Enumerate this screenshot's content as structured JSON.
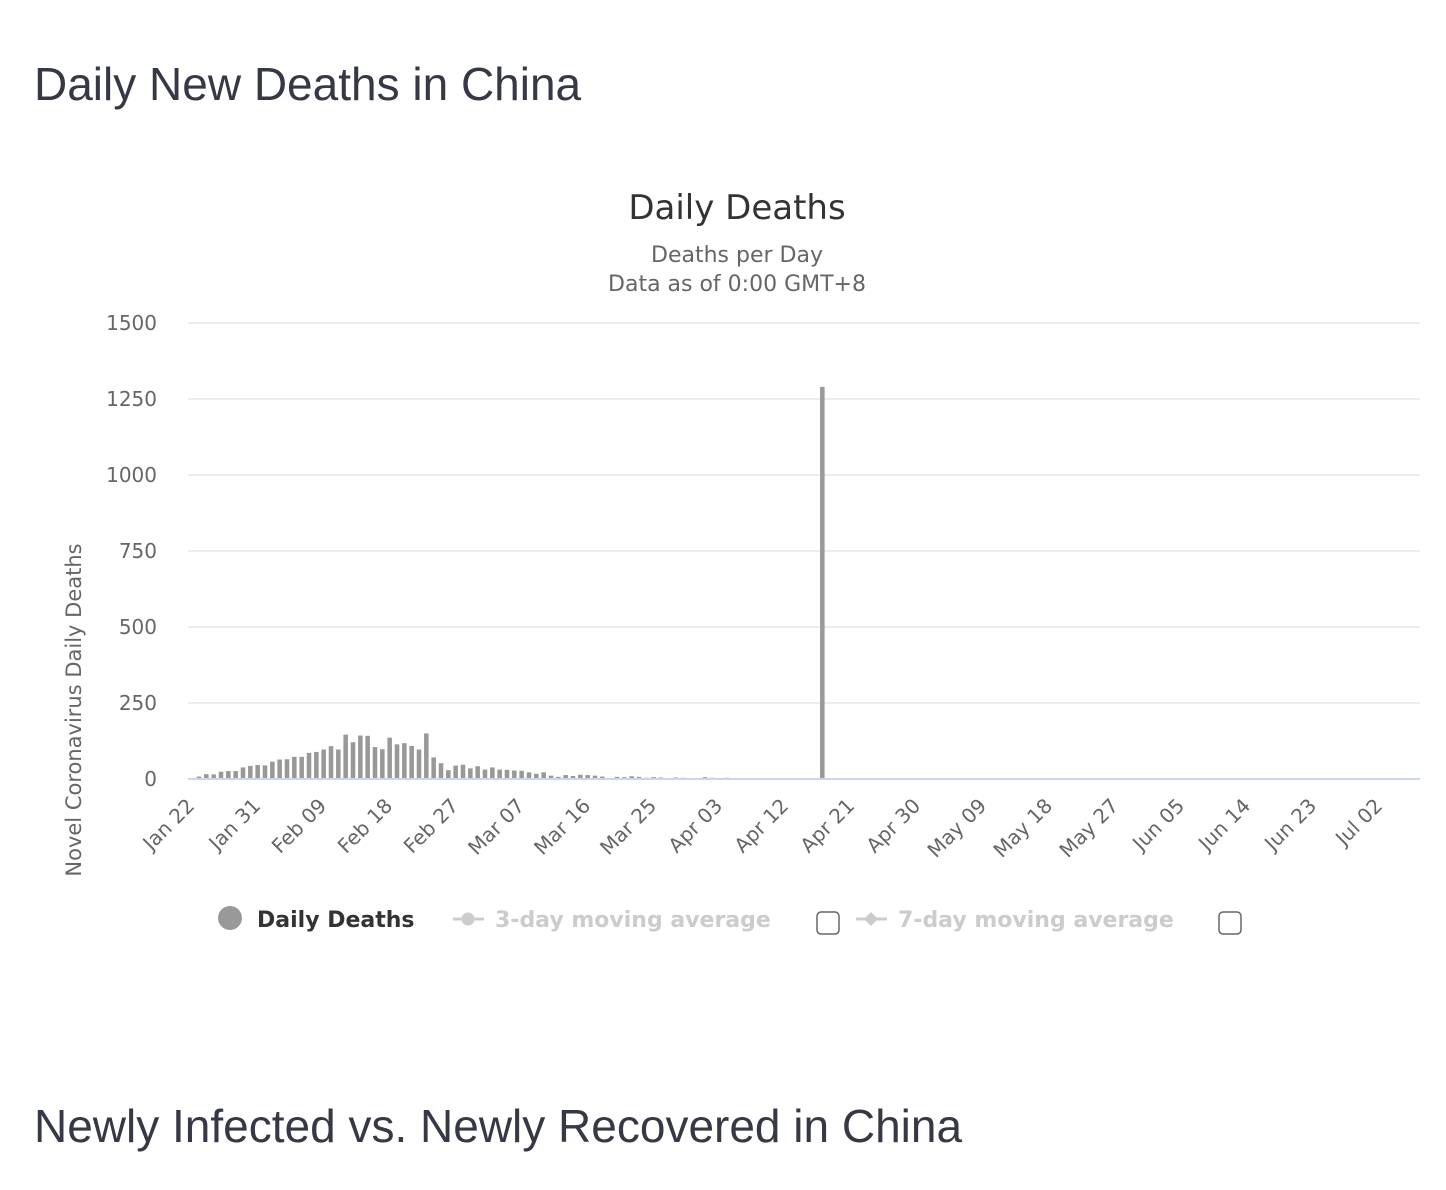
{
  "page": {
    "heading_deaths": "Daily New Deaths in China",
    "heading_infected": "Newly Infected vs. Newly Recovered in China"
  },
  "colors": {
    "bar": "#999999",
    "grid": "#e6e6e6",
    "axis_line": "#ccd6eb",
    "legend_active": "#333333",
    "legend_inactive": "#cccccc",
    "heading": "#363945"
  },
  "chart_data": {
    "type": "bar",
    "title": "Daily Deaths",
    "subtitle_lines": [
      "Deaths per Day",
      "Data as of 0:00 GMT+8"
    ],
    "ylabel": "Novel Coronavirus Daily Deaths",
    "xlabel": "",
    "ylim": [
      0,
      1500
    ],
    "yticks": [
      0,
      250,
      500,
      750,
      1000,
      1250,
      1500
    ],
    "x_start": "Jan 22",
    "x_end": "Jul 07",
    "xticks": [
      "Jan 22",
      "Jan 31",
      "Feb 09",
      "Feb 18",
      "Feb 27",
      "Mar 07",
      "Mar 16",
      "Mar 25",
      "Apr 03",
      "Apr 12",
      "Apr 21",
      "Apr 30",
      "May 09",
      "May 18",
      "May 27",
      "Jun 05",
      "Jun 14",
      "Jun 23",
      "Jul 02"
    ],
    "grid": true,
    "legend_position": "bottom",
    "legend": [
      {
        "name": "Daily Deaths",
        "active": true,
        "marker": "circle"
      },
      {
        "name": "3-day moving average",
        "active": false,
        "marker": "line-circle",
        "checkbox": true
      },
      {
        "name": "7-day moving average",
        "active": false,
        "marker": "line-diamond",
        "checkbox": true
      }
    ],
    "series": [
      {
        "name": "Daily Deaths",
        "points": [
          [
            "Jan 23",
            8
          ],
          [
            "Jan 24",
            16
          ],
          [
            "Jan 25",
            15
          ],
          [
            "Jan 26",
            24
          ],
          [
            "Jan 27",
            26
          ],
          [
            "Jan 28",
            26
          ],
          [
            "Jan 29",
            38
          ],
          [
            "Jan 30",
            43
          ],
          [
            "Jan 31",
            46
          ],
          [
            "Feb 01",
            45
          ],
          [
            "Feb 02",
            57
          ],
          [
            "Feb 03",
            64
          ],
          [
            "Feb 04",
            65
          ],
          [
            "Feb 05",
            73
          ],
          [
            "Feb 06",
            73
          ],
          [
            "Feb 07",
            86
          ],
          [
            "Feb 08",
            89
          ],
          [
            "Feb 09",
            97
          ],
          [
            "Feb 10",
            108
          ],
          [
            "Feb 11",
            97
          ],
          [
            "Feb 12",
            146
          ],
          [
            "Feb 13",
            121
          ],
          [
            "Feb 14",
            143
          ],
          [
            "Feb 15",
            142
          ],
          [
            "Feb 16",
            105
          ],
          [
            "Feb 17",
            98
          ],
          [
            "Feb 18",
            136
          ],
          [
            "Feb 19",
            114
          ],
          [
            "Feb 20",
            118
          ],
          [
            "Feb 21",
            109
          ],
          [
            "Feb 22",
            97
          ],
          [
            "Feb 23",
            150
          ],
          [
            "Feb 24",
            71
          ],
          [
            "Feb 25",
            52
          ],
          [
            "Feb 26",
            29
          ],
          [
            "Feb 27",
            44
          ],
          [
            "Feb 28",
            47
          ],
          [
            "Feb 29",
            35
          ],
          [
            "Mar 01",
            42
          ],
          [
            "Mar 02",
            31
          ],
          [
            "Mar 03",
            38
          ],
          [
            "Mar 04",
            31
          ],
          [
            "Mar 05",
            30
          ],
          [
            "Mar 06",
            28
          ],
          [
            "Mar 07",
            27
          ],
          [
            "Mar 08",
            22
          ],
          [
            "Mar 09",
            17
          ],
          [
            "Mar 10",
            22
          ],
          [
            "Mar 11",
            11
          ],
          [
            "Mar 12",
            7
          ],
          [
            "Mar 13",
            13
          ],
          [
            "Mar 14",
            10
          ],
          [
            "Mar 15",
            14
          ],
          [
            "Mar 16",
            13
          ],
          [
            "Mar 17",
            11
          ],
          [
            "Mar 18",
            8
          ],
          [
            "Mar 19",
            3
          ],
          [
            "Mar 20",
            7
          ],
          [
            "Mar 21",
            6
          ],
          [
            "Mar 22",
            9
          ],
          [
            "Mar 23",
            7
          ],
          [
            "Mar 24",
            4
          ],
          [
            "Mar 25",
            6
          ],
          [
            "Mar 26",
            5
          ],
          [
            "Mar 27",
            3
          ],
          [
            "Mar 28",
            5
          ],
          [
            "Mar 29",
            4
          ],
          [
            "Mar 30",
            1
          ],
          [
            "Mar 31",
            1
          ],
          [
            "Apr 01",
            6
          ],
          [
            "Apr 02",
            4
          ],
          [
            "Apr 03",
            3
          ],
          [
            "Apr 04",
            4
          ],
          [
            "Apr 05",
            1
          ],
          [
            "Apr 06",
            2
          ],
          [
            "Apr 07",
            2
          ],
          [
            "Apr 08",
            2
          ],
          [
            "Apr 09",
            2
          ],
          [
            "Apr 10",
            3
          ],
          [
            "Apr 11",
            3
          ],
          [
            "Apr 12",
            0
          ],
          [
            "Apr 13",
            0
          ],
          [
            "Apr 14",
            1
          ],
          [
            "Apr 15",
            2
          ],
          [
            "Apr 16",
            0
          ],
          [
            "Apr 17",
            1290
          ],
          [
            "Apr 18",
            1
          ],
          [
            "Apr 19",
            0
          ],
          [
            "Apr 20",
            0
          ],
          [
            "Apr 21",
            0
          ],
          [
            "Apr 22",
            0
          ],
          [
            "Apr 23",
            0
          ],
          [
            "Apr 24",
            0
          ],
          [
            "Apr 25",
            0
          ],
          [
            "Apr 26",
            0
          ],
          [
            "Apr 27",
            0
          ],
          [
            "Apr 28",
            0
          ],
          [
            "Apr 29",
            0
          ],
          [
            "Apr 30",
            0
          ],
          [
            "May 01",
            0
          ],
          [
            "May 02",
            0
          ],
          [
            "May 03",
            0
          ],
          [
            "May 04",
            0
          ],
          [
            "May 05",
            0
          ],
          [
            "May 06",
            0
          ],
          [
            "May 07",
            0
          ],
          [
            "May 08",
            0
          ],
          [
            "May 09",
            0
          ],
          [
            "May 10",
            0
          ],
          [
            "May 11",
            0
          ],
          [
            "May 12",
            0
          ],
          [
            "May 13",
            0
          ],
          [
            "May 14",
            0
          ],
          [
            "May 15",
            0
          ],
          [
            "May 16",
            1
          ],
          [
            "May 17",
            0
          ],
          [
            "May 18",
            0
          ],
          [
            "May 19",
            0
          ],
          [
            "May 20",
            0
          ],
          [
            "May 21",
            0
          ],
          [
            "May 22",
            0
          ],
          [
            "May 23",
            0
          ],
          [
            "May 24",
            0
          ],
          [
            "May 25",
            0
          ],
          [
            "May 26",
            0
          ],
          [
            "May 27",
            0
          ],
          [
            "May 28",
            0
          ],
          [
            "May 29",
            0
          ],
          [
            "May 30",
            0
          ],
          [
            "May 31",
            0
          ],
          [
            "Jun 01",
            0
          ],
          [
            "Jun 02",
            0
          ],
          [
            "Jun 03",
            0
          ],
          [
            "Jun 04",
            0
          ],
          [
            "Jun 05",
            0
          ],
          [
            "Jun 06",
            0
          ],
          [
            "Jun 07",
            0
          ],
          [
            "Jun 08",
            0
          ],
          [
            "Jun 09",
            0
          ],
          [
            "Jun 10",
            0
          ],
          [
            "Jun 11",
            0
          ],
          [
            "Jun 12",
            0
          ],
          [
            "Jun 13",
            0
          ],
          [
            "Jun 14",
            0
          ],
          [
            "Jun 15",
            0
          ],
          [
            "Jun 16",
            0
          ],
          [
            "Jun 17",
            0
          ],
          [
            "Jun 18",
            0
          ],
          [
            "Jun 19",
            0
          ],
          [
            "Jun 20",
            0
          ],
          [
            "Jun 21",
            0
          ],
          [
            "Jun 22",
            0
          ],
          [
            "Jun 23",
            0
          ],
          [
            "Jun 24",
            0
          ],
          [
            "Jun 25",
            0
          ],
          [
            "Jun 26",
            0
          ],
          [
            "Jun 27",
            0
          ],
          [
            "Jun 28",
            0
          ],
          [
            "Jun 29",
            0
          ],
          [
            "Jun 30",
            0
          ],
          [
            "Jul 01",
            0
          ],
          [
            "Jul 02",
            0
          ],
          [
            "Jul 03",
            0
          ],
          [
            "Jul 04",
            0
          ],
          [
            "Jul 05",
            0
          ],
          [
            "Jul 06",
            0
          ],
          [
            "Jul 07",
            0
          ]
        ]
      }
    ]
  }
}
